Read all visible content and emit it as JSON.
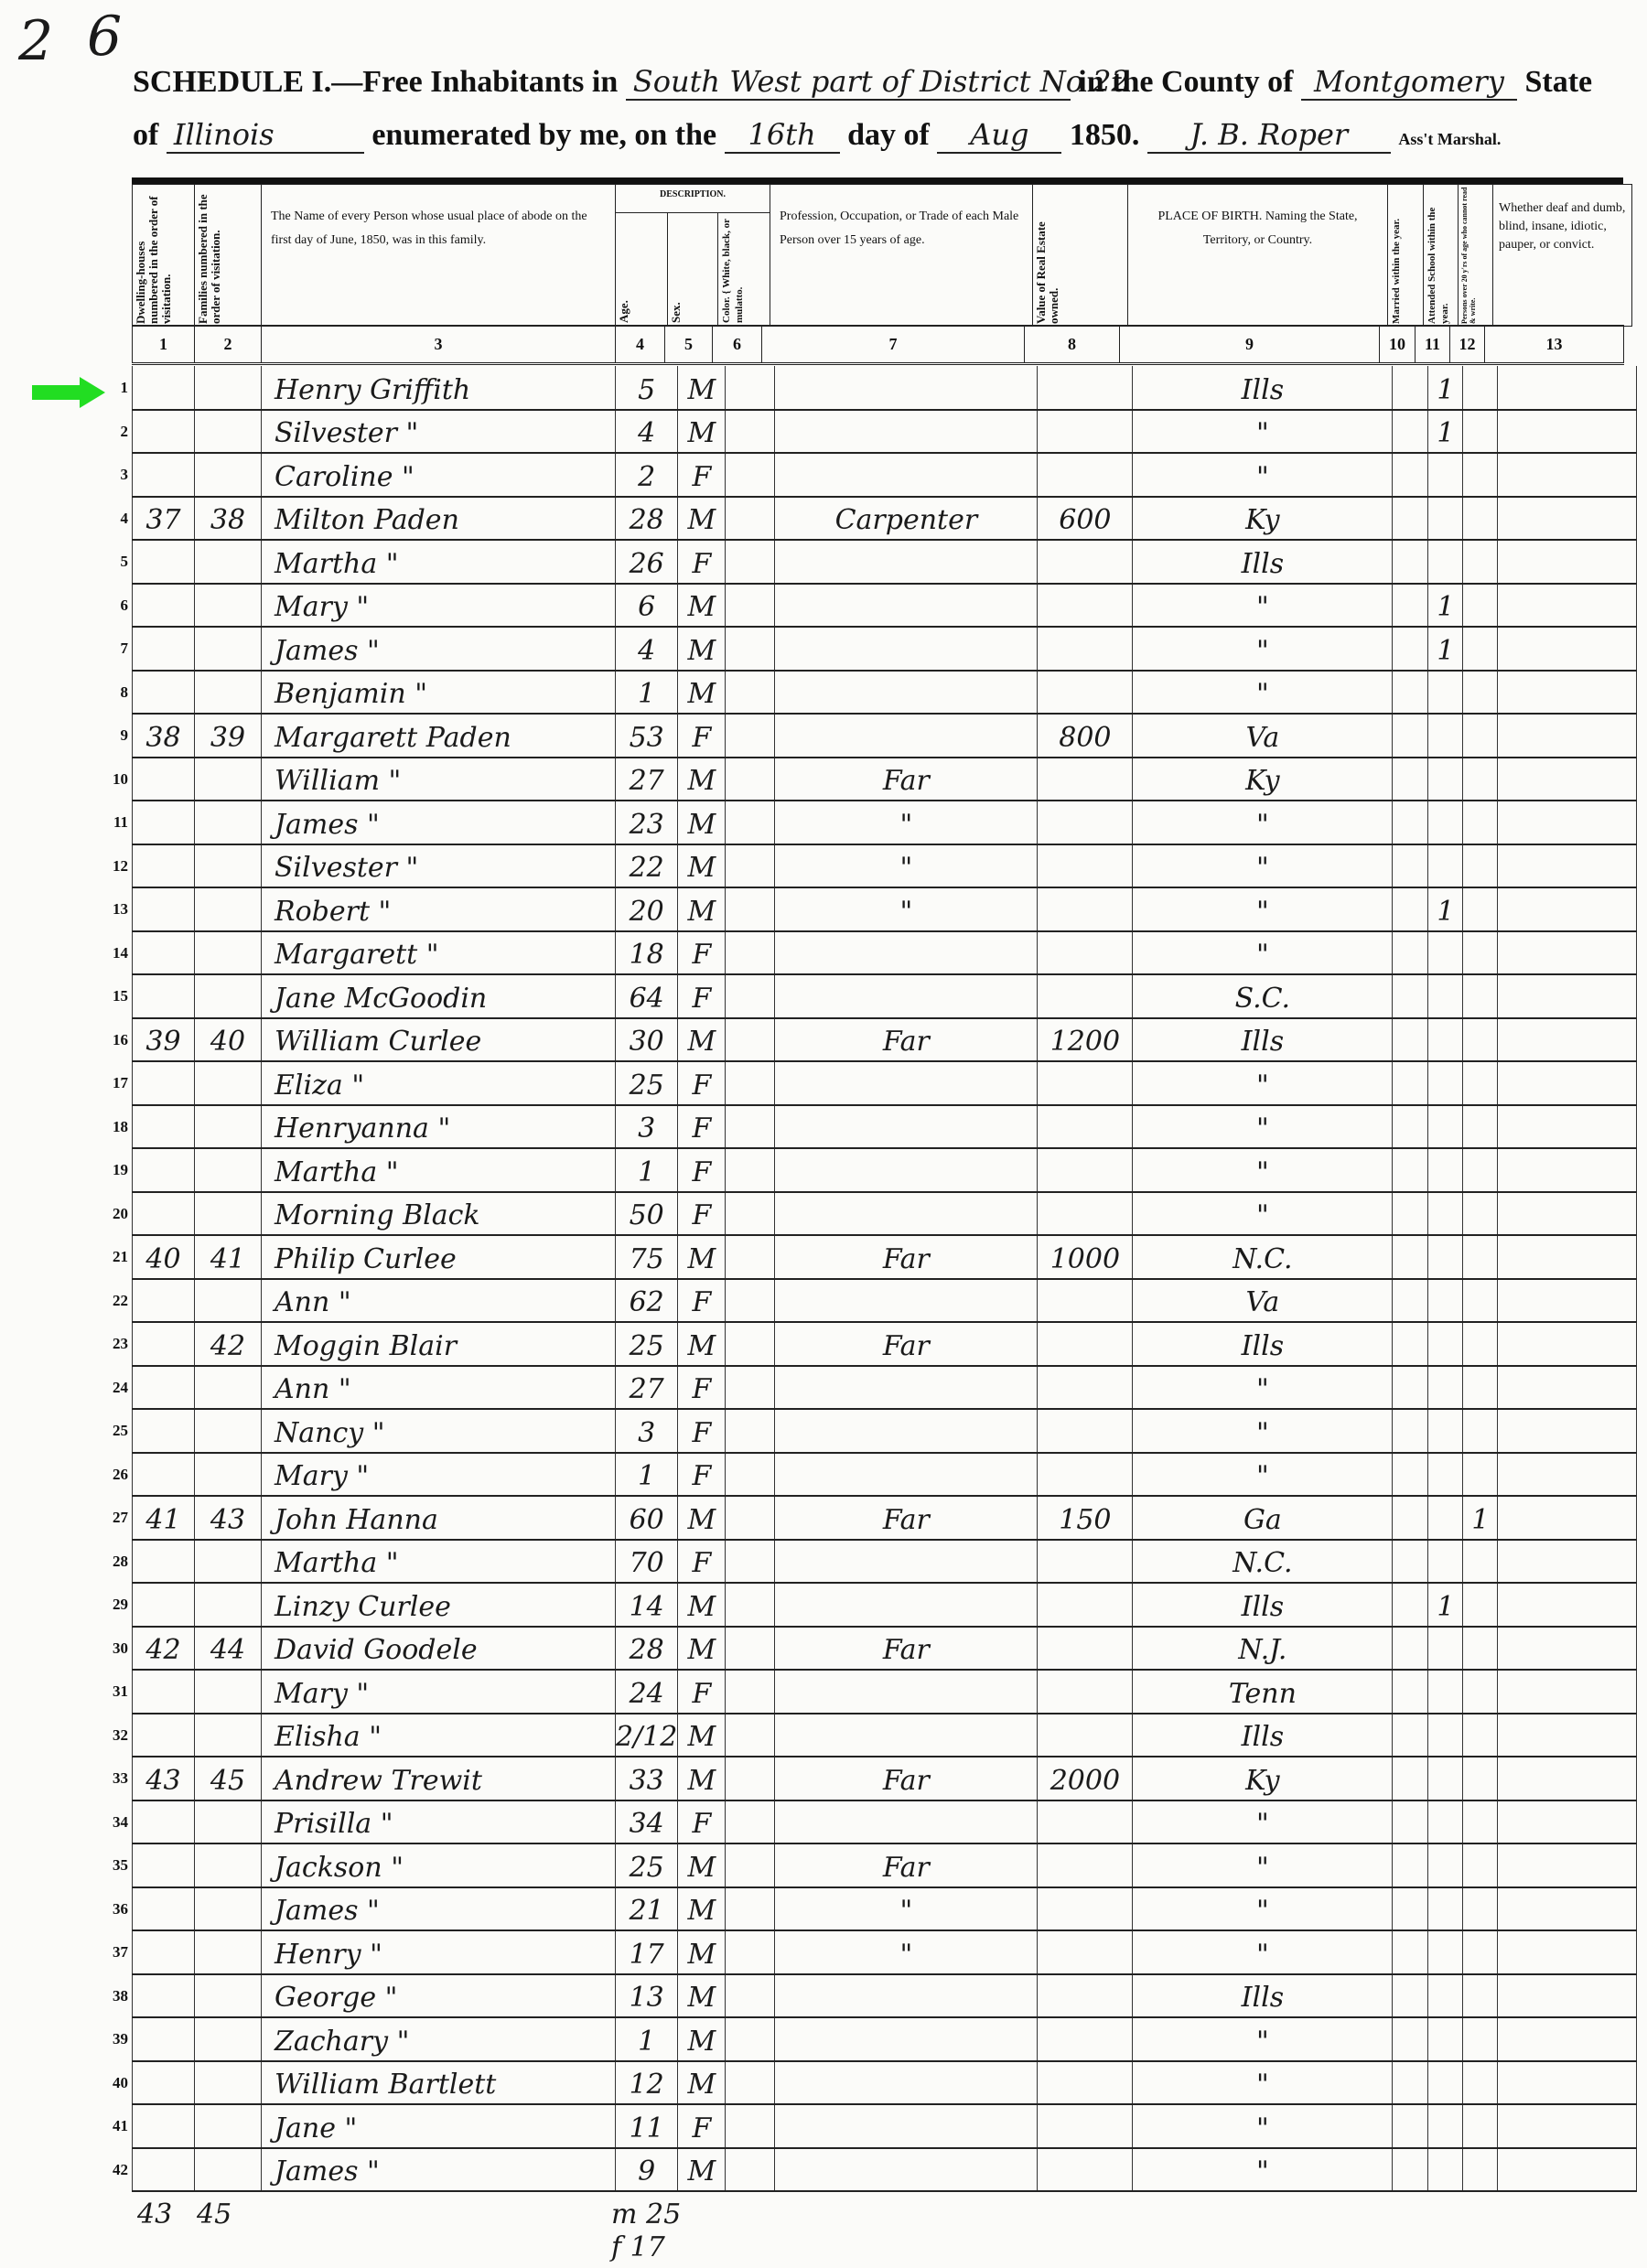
{
  "page": {
    "page_number": "6",
    "edge_mark": "2"
  },
  "header": {
    "schedule": "SCHEDULE I.—Free Inhabitants in",
    "place": "South West part of District No 22",
    "county_label": "in the County of",
    "county": "Montgomery",
    "state_label": "State",
    "of_label": "of",
    "state": "Illinois",
    "enumerated_label": "enumerated by me, on the",
    "day": "16th",
    "day_of_label": "day of",
    "month": "Aug",
    "year": "1850.",
    "marshal": "J. B. Roper",
    "marshal_label": "Ass't Marshal."
  },
  "columns": {
    "c1": "Dwelling-houses numbered in the order of visitation.",
    "c2": "Families numbered in the order of visitation.",
    "c3": "The Name of every Person whose usual place of abode on the first day of June, 1850, was in this family.",
    "description": "DESCRIPTION.",
    "c4": "Age.",
    "c5": "Sex.",
    "c6": "Color. { White, black, or mulatto.",
    "c7": "Profession, Occupation, or Trade of each Male Person over 15 years of age.",
    "c8": "Value of Real Estate owned.",
    "c9": "PLACE OF BIRTH. Naming the State, Territory, or Country.",
    "c10": "Married within the year.",
    "c11": "Attended School within the year.",
    "c12": "Persons over 20 y'rs of age who cannot read & write.",
    "c13": "Whether deaf and dumb, blind, insane, idiotic, pauper, or convict.",
    "numbers": [
      "1",
      "2",
      "3",
      "4",
      "5",
      "6",
      "7",
      "8",
      "9",
      "10",
      "11",
      "12",
      "13"
    ]
  },
  "marker_color": "#22dd22",
  "rows": [
    [
      "1",
      "",
      "",
      "Henry Griffith",
      "5",
      "M",
      "",
      "",
      "",
      "Ills",
      "",
      "1",
      "",
      ""
    ],
    [
      "2",
      "",
      "",
      "Silvester  \"",
      "4",
      "M",
      "",
      "",
      "",
      "\"",
      "",
      "1",
      "",
      ""
    ],
    [
      "3",
      "",
      "",
      "Caroline  \"",
      "2",
      "F",
      "",
      "",
      "",
      "\"",
      "",
      "",
      "",
      ""
    ],
    [
      "4",
      "37",
      "38",
      "Milton Paden",
      "28",
      "M",
      "",
      "Carpenter",
      "600",
      "Ky",
      "",
      "",
      "",
      ""
    ],
    [
      "5",
      "",
      "",
      "Martha  \"",
      "26",
      "F",
      "",
      "",
      "",
      "Ills",
      "",
      "",
      "",
      ""
    ],
    [
      "6",
      "",
      "",
      "Mary  \"",
      "6",
      "M",
      "",
      "",
      "",
      "\"",
      "",
      "1",
      "",
      ""
    ],
    [
      "7",
      "",
      "",
      "James  \"",
      "4",
      "M",
      "",
      "",
      "",
      "\"",
      "",
      "1",
      "",
      ""
    ],
    [
      "8",
      "",
      "",
      "Benjamin  \"",
      "1",
      "M",
      "",
      "",
      "",
      "\"",
      "",
      "",
      "",
      ""
    ],
    [
      "9",
      "38",
      "39",
      "Margarett Paden",
      "53",
      "F",
      "",
      "",
      "800",
      "Va",
      "",
      "",
      "",
      ""
    ],
    [
      "10",
      "",
      "",
      "William  \"",
      "27",
      "M",
      "",
      "Far",
      "",
      "Ky",
      "",
      "",
      "",
      ""
    ],
    [
      "11",
      "",
      "",
      "James  \"",
      "23",
      "M",
      "",
      "\"",
      "",
      "\"",
      "",
      "",
      "",
      ""
    ],
    [
      "12",
      "",
      "",
      "Silvester  \"",
      "22",
      "M",
      "",
      "\"",
      "",
      "\"",
      "",
      "",
      "",
      ""
    ],
    [
      "13",
      "",
      "",
      "Robert  \"",
      "20",
      "M",
      "",
      "\"",
      "",
      "\"",
      "",
      "1",
      "",
      ""
    ],
    [
      "14",
      "",
      "",
      "Margarett  \"",
      "18",
      "F",
      "",
      "",
      "",
      "\"",
      "",
      "",
      "",
      ""
    ],
    [
      "15",
      "",
      "",
      "Jane McGoodin",
      "64",
      "F",
      "",
      "",
      "",
      "S.C.",
      "",
      "",
      "",
      ""
    ],
    [
      "16",
      "39",
      "40",
      "William Curlee",
      "30",
      "M",
      "",
      "Far",
      "1200",
      "Ills",
      "",
      "",
      "",
      ""
    ],
    [
      "17",
      "",
      "",
      "Eliza  \"",
      "25",
      "F",
      "",
      "",
      "",
      "\"",
      "",
      "",
      "",
      ""
    ],
    [
      "18",
      "",
      "",
      "Henryanna  \"",
      "3",
      "F",
      "",
      "",
      "",
      "\"",
      "",
      "",
      "",
      ""
    ],
    [
      "19",
      "",
      "",
      "Martha  \"",
      "1",
      "F",
      "",
      "",
      "",
      "\"",
      "",
      "",
      "",
      ""
    ],
    [
      "20",
      "",
      "",
      "Morning Black",
      "50",
      "F",
      "",
      "",
      "",
      "\"",
      "",
      "",
      "",
      ""
    ],
    [
      "21",
      "40",
      "41",
      "Philip Curlee",
      "75",
      "M",
      "",
      "Far",
      "1000",
      "N.C.",
      "",
      "",
      "",
      ""
    ],
    [
      "22",
      "",
      "",
      "Ann  \"",
      "62",
      "F",
      "",
      "",
      "",
      "Va",
      "",
      "",
      "",
      ""
    ],
    [
      "23",
      "",
      "42",
      "Moggin Blair",
      "25",
      "M",
      "",
      "Far",
      "",
      "Ills",
      "",
      "",
      "",
      ""
    ],
    [
      "24",
      "",
      "",
      "Ann  \"",
      "27",
      "F",
      "",
      "",
      "",
      "\"",
      "",
      "",
      "",
      ""
    ],
    [
      "25",
      "",
      "",
      "Nancy  \"",
      "3",
      "F",
      "",
      "",
      "",
      "\"",
      "",
      "",
      "",
      ""
    ],
    [
      "26",
      "",
      "",
      "Mary  \"",
      "1",
      "F",
      "",
      "",
      "",
      "\"",
      "",
      "",
      "",
      ""
    ],
    [
      "27",
      "41",
      "43",
      "John Hanna",
      "60",
      "M",
      "",
      "Far",
      "150",
      "Ga",
      "",
      "",
      "1",
      ""
    ],
    [
      "28",
      "",
      "",
      "Martha  \"",
      "70",
      "F",
      "",
      "",
      "",
      "N.C.",
      "",
      "",
      "",
      ""
    ],
    [
      "29",
      "",
      "",
      "Linzy Curlee",
      "14",
      "M",
      "",
      "",
      "",
      "Ills",
      "",
      "1",
      "",
      ""
    ],
    [
      "30",
      "42",
      "44",
      "David Goodele",
      "28",
      "M",
      "",
      "Far",
      "",
      "N.J.",
      "",
      "",
      "",
      ""
    ],
    [
      "31",
      "",
      "",
      "Mary  \"",
      "24",
      "F",
      "",
      "",
      "",
      "Tenn",
      "",
      "",
      "",
      ""
    ],
    [
      "32",
      "",
      "",
      "Elisha  \"",
      "2/12",
      "M",
      "",
      "",
      "",
      "Ills",
      "",
      "",
      "",
      ""
    ],
    [
      "33",
      "43",
      "45",
      "Andrew Trewit",
      "33",
      "M",
      "",
      "Far",
      "2000",
      "Ky",
      "",
      "",
      "",
      ""
    ],
    [
      "34",
      "",
      "",
      "Prisilla  \"",
      "34",
      "F",
      "",
      "",
      "",
      "\"",
      "",
      "",
      "",
      ""
    ],
    [
      "35",
      "",
      "",
      "Jackson  \"",
      "25",
      "M",
      "",
      "Far",
      "",
      "\"",
      "",
      "",
      "",
      ""
    ],
    [
      "36",
      "",
      "",
      "James  \"",
      "21",
      "M",
      "",
      "\"",
      "",
      "\"",
      "",
      "",
      "",
      ""
    ],
    [
      "37",
      "",
      "",
      "Henry  \"",
      "17",
      "M",
      "",
      "\"",
      "",
      "\"",
      "",
      "",
      "",
      ""
    ],
    [
      "38",
      "",
      "",
      "George  \"",
      "13",
      "M",
      "",
      "",
      "",
      "Ills",
      "",
      "",
      "",
      ""
    ],
    [
      "39",
      "",
      "",
      "Zachary  \"",
      "1",
      "M",
      "",
      "",
      "",
      "\"",
      "",
      "",
      "",
      ""
    ],
    [
      "40",
      "",
      "",
      "William Bartlett",
      "12",
      "M",
      "",
      "",
      "",
      "\"",
      "",
      "",
      "",
      ""
    ],
    [
      "41",
      "",
      "",
      "Jane  \"",
      "11",
      "F",
      "",
      "",
      "",
      "\"",
      "",
      "",
      "",
      ""
    ],
    [
      "42",
      "",
      "",
      "James  \"",
      "9",
      "M",
      "",
      "",
      "",
      "\"",
      "",
      "",
      "",
      ""
    ]
  ],
  "footer": {
    "dwellings_total": "43",
    "families_total": "45",
    "males": "m 25",
    "females": "f 17"
  }
}
